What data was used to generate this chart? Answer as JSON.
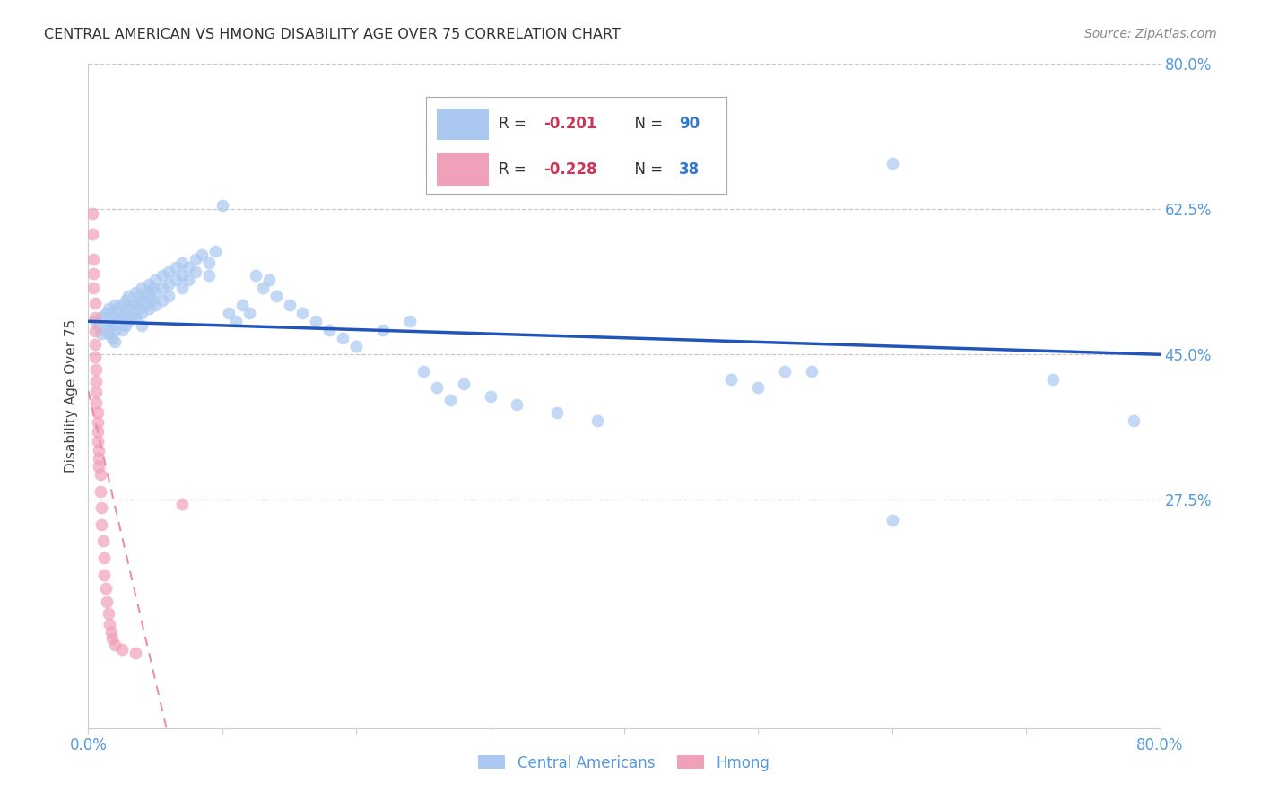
{
  "title": "CENTRAL AMERICAN VS HMONG DISABILITY AGE OVER 75 CORRELATION CHART",
  "source": "Source: ZipAtlas.com",
  "ylabel": "Disability Age Over 75",
  "x_min": 0.0,
  "x_max": 0.8,
  "y_min": 0.0,
  "y_max": 0.8,
  "x_tick_pos": [
    0.0,
    0.1,
    0.2,
    0.3,
    0.4,
    0.5,
    0.6,
    0.7,
    0.8
  ],
  "x_tick_labels": [
    "0.0%",
    "",
    "",
    "",
    "",
    "",
    "",
    "",
    "80.0%"
  ],
  "y_tick_labels_right": [
    "80.0%",
    "62.5%",
    "45.0%",
    "27.5%"
  ],
  "y_tick_positions_right": [
    0.8,
    0.625,
    0.45,
    0.275
  ],
  "background_color": "#ffffff",
  "grid_color": "#c8c8c8",
  "ca_scatter_color": "#aac8f0",
  "hmong_scatter_color": "#f0a0b8",
  "ca_line_color": "#2255bb",
  "hmong_line_color": "#e890a8",
  "ca_points": [
    [
      0.005,
      0.49
    ],
    [
      0.008,
      0.485
    ],
    [
      0.01,
      0.495
    ],
    [
      0.01,
      0.475
    ],
    [
      0.013,
      0.5
    ],
    [
      0.013,
      0.48
    ],
    [
      0.015,
      0.505
    ],
    [
      0.015,
      0.49
    ],
    [
      0.015,
      0.475
    ],
    [
      0.018,
      0.5
    ],
    [
      0.018,
      0.485
    ],
    [
      0.018,
      0.47
    ],
    [
      0.02,
      0.51
    ],
    [
      0.02,
      0.495
    ],
    [
      0.02,
      0.48
    ],
    [
      0.02,
      0.465
    ],
    [
      0.022,
      0.505
    ],
    [
      0.022,
      0.49
    ],
    [
      0.025,
      0.51
    ],
    [
      0.025,
      0.495
    ],
    [
      0.025,
      0.48
    ],
    [
      0.028,
      0.515
    ],
    [
      0.028,
      0.5
    ],
    [
      0.028,
      0.485
    ],
    [
      0.03,
      0.52
    ],
    [
      0.03,
      0.505
    ],
    [
      0.03,
      0.49
    ],
    [
      0.033,
      0.51
    ],
    [
      0.033,
      0.495
    ],
    [
      0.035,
      0.525
    ],
    [
      0.035,
      0.51
    ],
    [
      0.035,
      0.495
    ],
    [
      0.038,
      0.52
    ],
    [
      0.038,
      0.505
    ],
    [
      0.04,
      0.53
    ],
    [
      0.04,
      0.515
    ],
    [
      0.04,
      0.5
    ],
    [
      0.04,
      0.485
    ],
    [
      0.043,
      0.525
    ],
    [
      0.043,
      0.51
    ],
    [
      0.045,
      0.535
    ],
    [
      0.045,
      0.52
    ],
    [
      0.045,
      0.505
    ],
    [
      0.048,
      0.53
    ],
    [
      0.048,
      0.515
    ],
    [
      0.05,
      0.54
    ],
    [
      0.05,
      0.525
    ],
    [
      0.05,
      0.51
    ],
    [
      0.055,
      0.545
    ],
    [
      0.055,
      0.53
    ],
    [
      0.055,
      0.515
    ],
    [
      0.06,
      0.55
    ],
    [
      0.06,
      0.535
    ],
    [
      0.06,
      0.52
    ],
    [
      0.065,
      0.555
    ],
    [
      0.065,
      0.54
    ],
    [
      0.07,
      0.56
    ],
    [
      0.07,
      0.545
    ],
    [
      0.07,
      0.53
    ],
    [
      0.075,
      0.555
    ],
    [
      0.075,
      0.54
    ],
    [
      0.08,
      0.565
    ],
    [
      0.08,
      0.55
    ],
    [
      0.085,
      0.57
    ],
    [
      0.09,
      0.56
    ],
    [
      0.09,
      0.545
    ],
    [
      0.095,
      0.575
    ],
    [
      0.1,
      0.63
    ],
    [
      0.105,
      0.5
    ],
    [
      0.11,
      0.49
    ],
    [
      0.115,
      0.51
    ],
    [
      0.12,
      0.5
    ],
    [
      0.125,
      0.545
    ],
    [
      0.13,
      0.53
    ],
    [
      0.135,
      0.54
    ],
    [
      0.14,
      0.52
    ],
    [
      0.15,
      0.51
    ],
    [
      0.16,
      0.5
    ],
    [
      0.17,
      0.49
    ],
    [
      0.18,
      0.48
    ],
    [
      0.19,
      0.47
    ],
    [
      0.2,
      0.46
    ],
    [
      0.22,
      0.48
    ],
    [
      0.24,
      0.49
    ],
    [
      0.25,
      0.43
    ],
    [
      0.26,
      0.41
    ],
    [
      0.27,
      0.395
    ],
    [
      0.28,
      0.415
    ],
    [
      0.3,
      0.4
    ],
    [
      0.32,
      0.39
    ],
    [
      0.35,
      0.38
    ],
    [
      0.38,
      0.37
    ],
    [
      0.42,
      0.66
    ],
    [
      0.44,
      0.65
    ],
    [
      0.48,
      0.42
    ],
    [
      0.5,
      0.41
    ],
    [
      0.52,
      0.43
    ],
    [
      0.54,
      0.43
    ],
    [
      0.6,
      0.68
    ],
    [
      0.72,
      0.42
    ],
    [
      0.6,
      0.25
    ],
    [
      0.78,
      0.37
    ]
  ],
  "hmong_points": [
    [
      0.003,
      0.62
    ],
    [
      0.003,
      0.595
    ],
    [
      0.004,
      0.565
    ],
    [
      0.004,
      0.548
    ],
    [
      0.004,
      0.53
    ],
    [
      0.005,
      0.512
    ],
    [
      0.005,
      0.495
    ],
    [
      0.005,
      0.478
    ],
    [
      0.005,
      0.462
    ],
    [
      0.005,
      0.447
    ],
    [
      0.006,
      0.432
    ],
    [
      0.006,
      0.418
    ],
    [
      0.006,
      0.405
    ],
    [
      0.006,
      0.392
    ],
    [
      0.007,
      0.38
    ],
    [
      0.007,
      0.368
    ],
    [
      0.007,
      0.357
    ],
    [
      0.007,
      0.346
    ],
    [
      0.008,
      0.335
    ],
    [
      0.008,
      0.325
    ],
    [
      0.008,
      0.315
    ],
    [
      0.009,
      0.305
    ],
    [
      0.009,
      0.285
    ],
    [
      0.01,
      0.265
    ],
    [
      0.01,
      0.245
    ],
    [
      0.011,
      0.225
    ],
    [
      0.012,
      0.205
    ],
    [
      0.012,
      0.185
    ],
    [
      0.013,
      0.168
    ],
    [
      0.014,
      0.152
    ],
    [
      0.015,
      0.138
    ],
    [
      0.016,
      0.125
    ],
    [
      0.017,
      0.115
    ],
    [
      0.018,
      0.108
    ],
    [
      0.02,
      0.1
    ],
    [
      0.025,
      0.095
    ],
    [
      0.035,
      0.09
    ],
    [
      0.07,
      0.27
    ]
  ]
}
